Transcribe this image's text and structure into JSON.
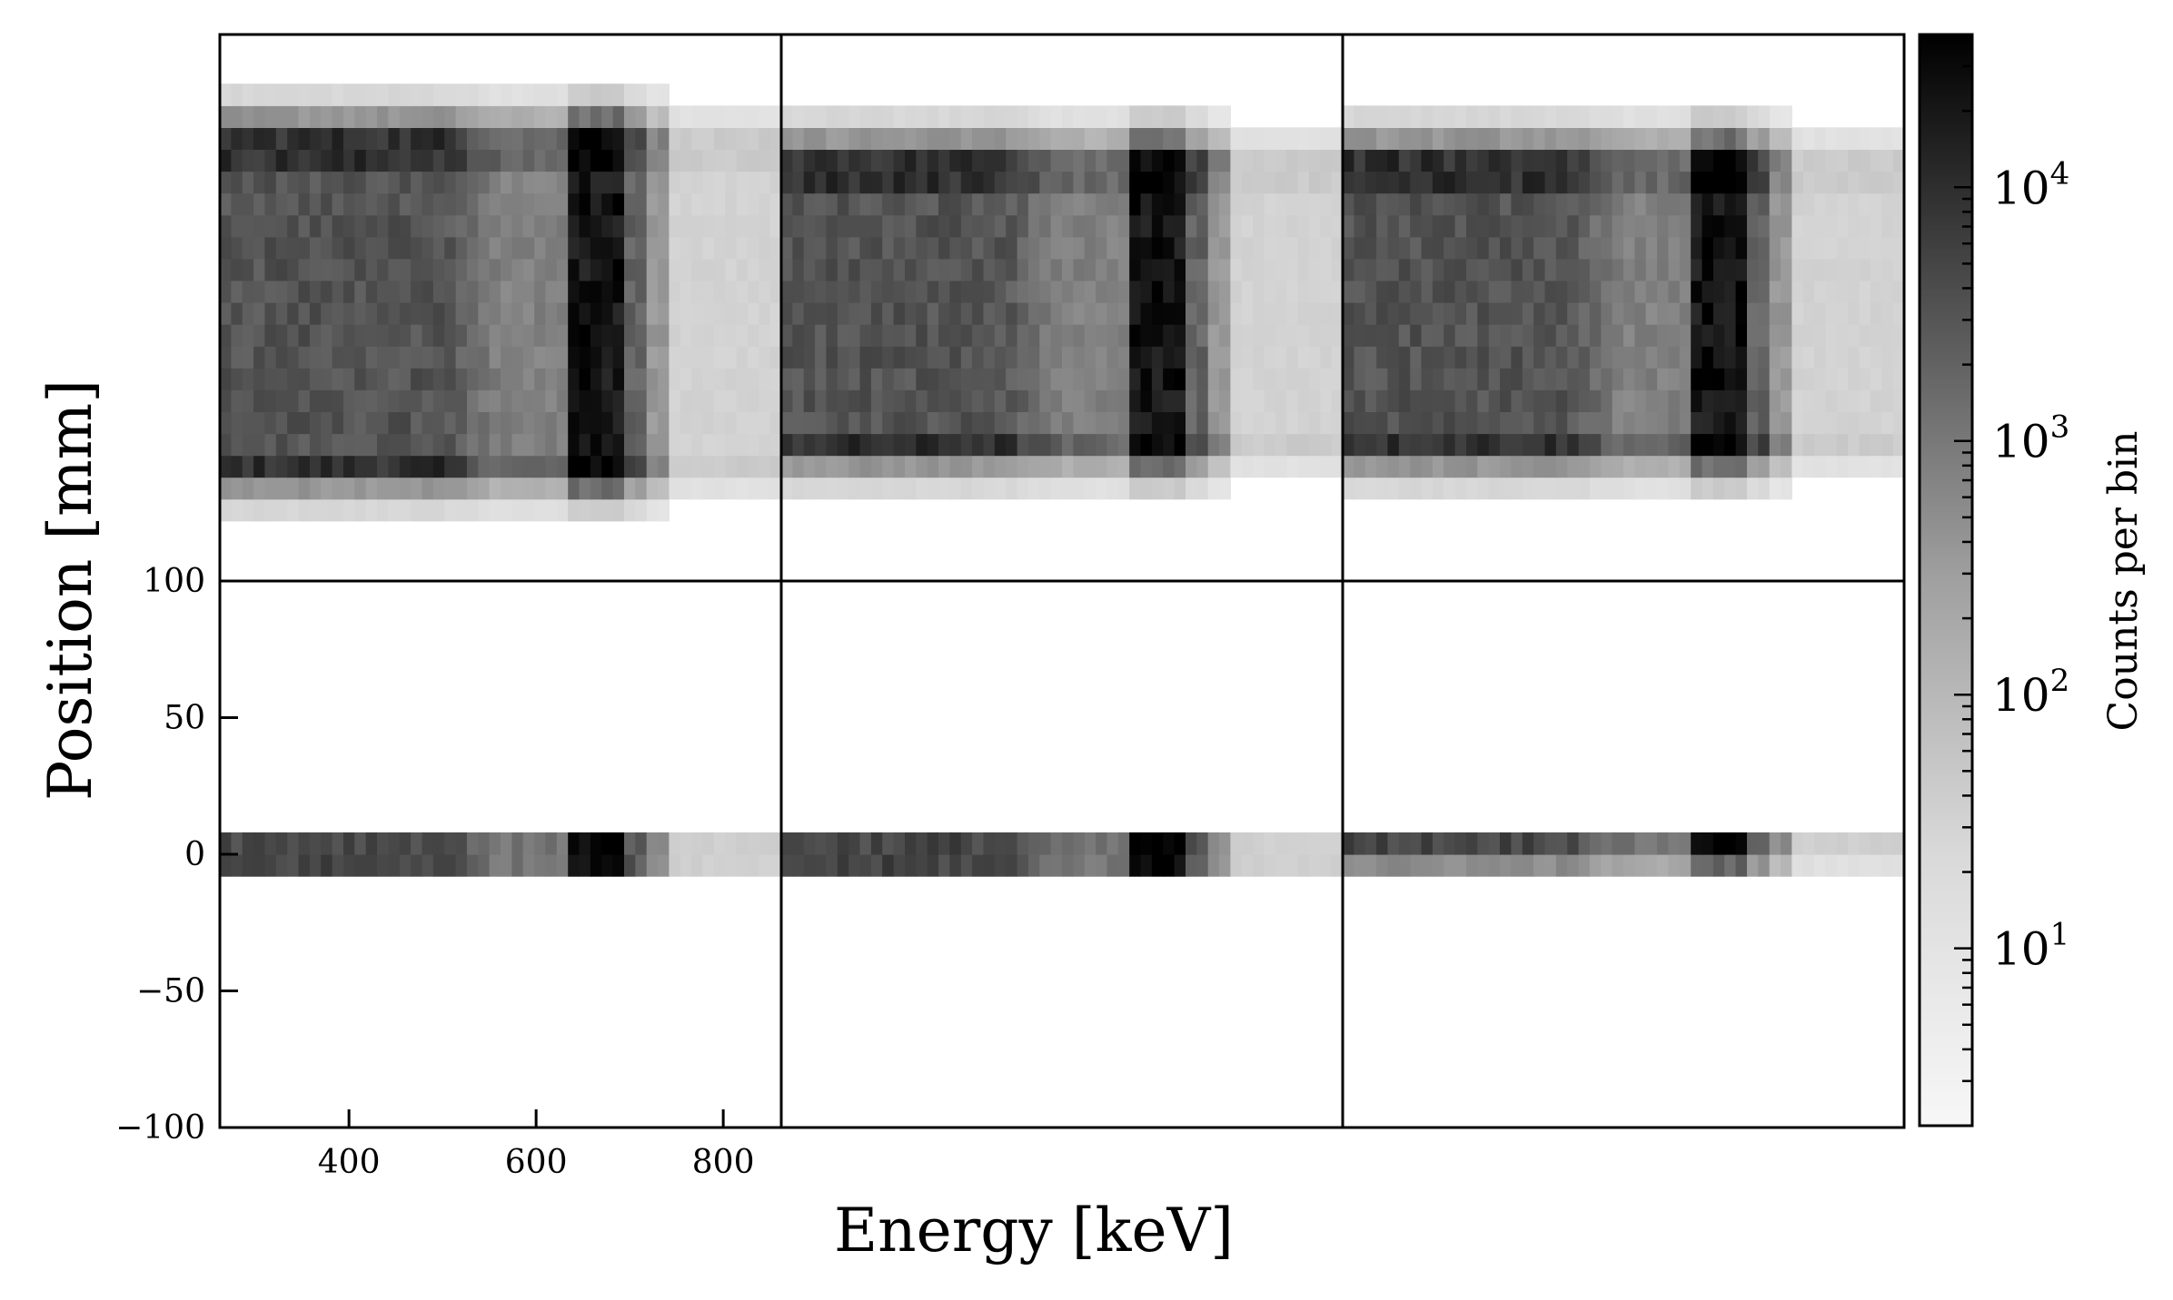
{
  "chart_data": {
    "type": "heatmap",
    "layout": "2 rows x 3 columns of 2D histogram panels with shared axes",
    "xlabel": "Energy [keV]",
    "ylabel": "Position [mm]",
    "xlim": [
      262,
      862
    ],
    "ylim": [
      -100,
      100
    ],
    "x_ticks": [
      {
        "value": 400,
        "label": "400"
      },
      {
        "value": 600,
        "label": "600"
      },
      {
        "value": 800,
        "label": "800"
      }
    ],
    "y_ticks": [
      {
        "value": 100,
        "label": "100"
      },
      {
        "value": 50,
        "label": "50"
      },
      {
        "value": 0,
        "label": "0"
      },
      {
        "value": -50,
        "label": "−50"
      },
      {
        "value": -100,
        "label": "−100"
      }
    ],
    "colormap": "grayscale (white = low, black = high)",
    "colorbar": {
      "label": "Counts per bin",
      "scale": "log",
      "range": [
        2,
        40000
      ],
      "ticks": [
        {
          "value": 10,
          "label": "10",
          "exp": "1"
        },
        {
          "value": 100,
          "label": "10",
          "exp": "2"
        },
        {
          "value": 1000,
          "label": "10",
          "exp": "3"
        },
        {
          "value": 10000,
          "label": "10",
          "exp": "4"
        }
      ]
    },
    "panels": [
      {
        "row": 0,
        "col": 0,
        "band_y": [
          -70,
          70
        ],
        "photopeak_keV": 662,
        "peak_counts": 40000
      },
      {
        "row": 0,
        "col": 1,
        "band_y": [
          -62,
          62
        ],
        "photopeak_keV": 662,
        "peak_counts": 40000
      },
      {
        "row": 0,
        "col": 2,
        "band_y": [
          -62,
          62
        ],
        "photopeak_keV": 662,
        "peak_counts": 40000
      },
      {
        "row": 1,
        "col": 0,
        "band_y": [
          -8,
          8
        ],
        "photopeak_keV": 662,
        "peak_counts": 40000
      },
      {
        "row": 1,
        "col": 1,
        "band_y": [
          -8,
          8
        ],
        "photopeak_keV": 662,
        "peak_counts": 40000
      },
      {
        "row": 1,
        "col": 2,
        "band_y": [
          -8,
          8
        ],
        "photopeak_keV": 662,
        "peak_counts": 40000
      }
    ]
  }
}
